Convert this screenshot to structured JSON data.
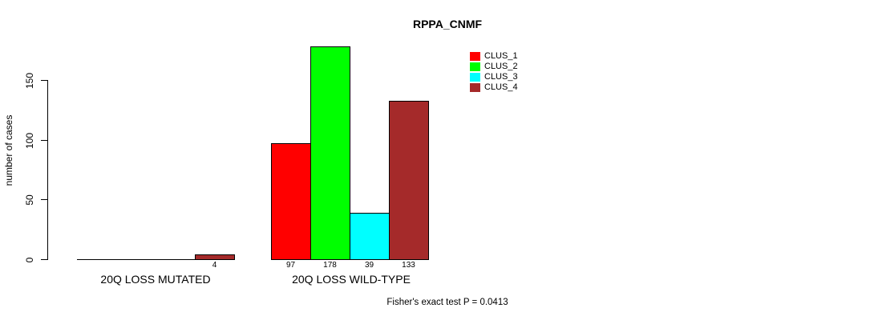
{
  "window": {
    "background": "#ffffff",
    "text_color": "#000000"
  },
  "chart_data": {
    "type": "bar",
    "title": "RPPA_CNMF",
    "ylabel": "number of cases",
    "xlabel": "",
    "categories": [
      "20Q LOSS MUTATED",
      "20Q LOSS WILD-TYPE"
    ],
    "series": [
      {
        "name": "CLUS_1",
        "color": "#FF0000",
        "values": [
          0,
          97
        ]
      },
      {
        "name": "CLUS_2",
        "color": "#00FF00",
        "values": [
          0,
          178
        ]
      },
      {
        "name": "CLUS_3",
        "color": "#00FFFF",
        "values": [
          0,
          39
        ]
      },
      {
        "name": "CLUS_4",
        "color": "#A52A2A",
        "values": [
          4,
          133
        ]
      }
    ],
    "bar_value_labels": {
      "shown": true,
      "hide_zero": true
    },
    "y_ticks": [
      0,
      50,
      100,
      150
    ],
    "ylim": [
      0,
      178
    ],
    "grid": false,
    "legend": {
      "position": "top-right",
      "entries": [
        "CLUS_1",
        "CLUS_2",
        "CLUS_3",
        "CLUS_4"
      ]
    },
    "footnote": "Fisher's exact test P = 0.0413",
    "p_value": 0.0413
  }
}
